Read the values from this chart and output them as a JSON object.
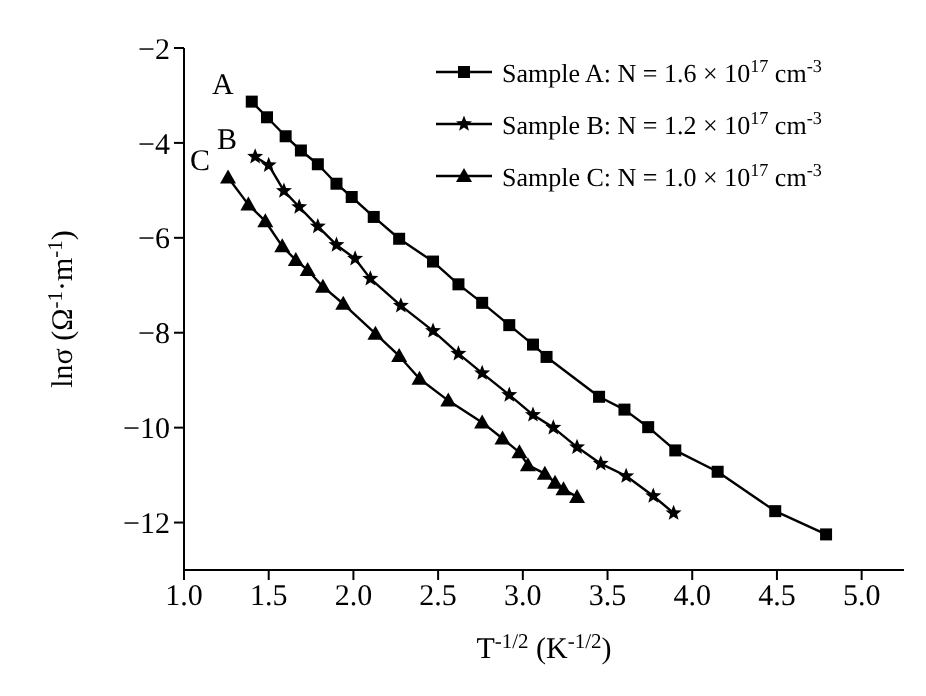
{
  "chart_data": {
    "type": "line",
    "xlabel": "T$^{-1/2}$ (K$^{-1/2}$)",
    "ylabel": "lnσ (Ω$^{-1}$·m$^{-1}$)",
    "xlim": [
      1,
      5.25
    ],
    "xticks": [
      {
        "value": 1,
        "label": "1.0"
      },
      {
        "value": 1.5,
        "label": "1.5"
      },
      {
        "value": 2,
        "label": "2.0"
      },
      {
        "value": 2.5,
        "label": "2.5"
      },
      {
        "value": 3,
        "label": "3.0"
      },
      {
        "value": 3.5,
        "label": "3.5"
      },
      {
        "value": 4,
        "label": "4.0"
      },
      {
        "value": 4.5,
        "label": "4.5"
      },
      {
        "value": 5,
        "label": "5.0"
      }
    ],
    "ylim": [
      -13,
      -2
    ],
    "yticks": [
      {
        "value": -2,
        "label": "−2"
      },
      {
        "value": -4,
        "label": "−4"
      },
      {
        "value": -6,
        "label": "−6"
      },
      {
        "value": -8,
        "label": "−8"
      },
      {
        "value": -10,
        "label": "−10"
      },
      {
        "value": -12,
        "label": "−12"
      }
    ],
    "grid": false,
    "legend": "top right",
    "line_style": "solid",
    "series": [
      {
        "name": "Sample A: N = 1.6 × 10$^{17}$ cm$^{-3}$",
        "color": "#000000",
        "marker": "square",
        "x": [
          1.4,
          1.49,
          1.6,
          1.69,
          1.79,
          1.9,
          1.99,
          2.12,
          2.27,
          2.47,
          2.62,
          2.76,
          2.92,
          3.06,
          3.14,
          3.45,
          3.6,
          3.74,
          3.9,
          4.15,
          4.49,
          4.79
        ],
        "values": [
          -3.13,
          -3.46,
          -3.86,
          -4.16,
          -4.45,
          -4.86,
          -5.14,
          -5.56,
          -6.02,
          -6.5,
          -6.98,
          -7.37,
          -7.84,
          -8.25,
          -8.51,
          -9.35,
          -9.62,
          -9.99,
          -10.48,
          -10.93,
          -11.76,
          -12.25
        ]
      },
      {
        "name": "Sample B: N = 1.2 × 10$^{17}$ cm$^{-3}$",
        "color": "#000000",
        "marker": "star",
        "x": [
          1.42,
          1.5,
          1.59,
          1.68,
          1.79,
          1.9,
          2.01,
          2.1,
          2.28,
          2.47,
          2.62,
          2.76,
          2.92,
          3.06,
          3.18,
          3.32,
          3.46,
          3.61,
          3.77,
          3.89
        ],
        "values": [
          -4.29,
          -4.47,
          -5.01,
          -5.35,
          -5.76,
          -6.15,
          -6.44,
          -6.86,
          -7.43,
          -7.96,
          -8.44,
          -8.85,
          -9.31,
          -9.73,
          -10.0,
          -10.41,
          -10.76,
          -11.02,
          -11.44,
          -11.8
        ]
      },
      {
        "name": "Sample C: N = 1.0 × 10$^{17}$ cm$^{-3}$",
        "color": "#000000",
        "marker": "triangle",
        "x": [
          1.26,
          1.38,
          1.48,
          1.58,
          1.66,
          1.73,
          1.82,
          1.94,
          2.13,
          2.27,
          2.39,
          2.56,
          2.76,
          2.88,
          2.98,
          3.03,
          3.13,
          3.19,
          3.24,
          3.32
        ],
        "values": [
          -4.73,
          -5.3,
          -5.65,
          -6.18,
          -6.47,
          -6.68,
          -7.03,
          -7.39,
          -8.02,
          -8.49,
          -8.97,
          -9.43,
          -9.89,
          -10.23,
          -10.52,
          -10.79,
          -10.97,
          -11.16,
          -11.3,
          -11.46
        ]
      }
    ],
    "annotations": [
      {
        "text": "A",
        "x": 1.4,
        "y": -3.13
      },
      {
        "text": "B",
        "x": 1.42,
        "y": -4.29
      },
      {
        "text": "C",
        "x": 1.26,
        "y": -4.73
      }
    ]
  }
}
